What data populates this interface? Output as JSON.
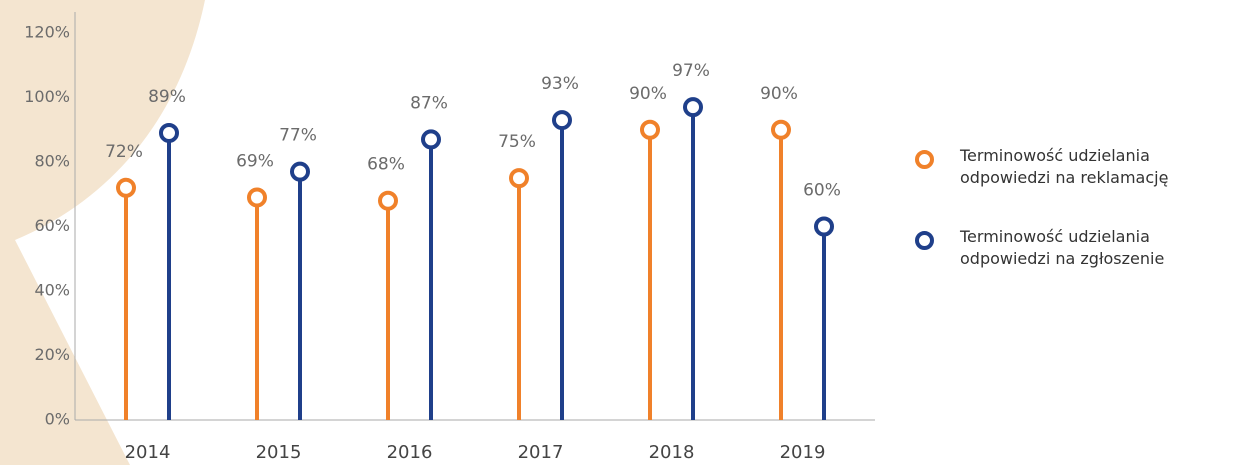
{
  "chart_data": {
    "type": "lollipop",
    "categories": [
      "2014",
      "2015",
      "2016",
      "2017",
      "2018",
      "2019"
    ],
    "series": [
      {
        "name": "Terminowość udzielania odpowiedzi na reklamację",
        "color": "#f0812a",
        "values": [
          72,
          69,
          68,
          75,
          90,
          90
        ],
        "value_labels": [
          "72%",
          "69%",
          "68%",
          "75%",
          "90%",
          "90%"
        ]
      },
      {
        "name": "Terminowość udzielania odpowiedzi na zgłoszenie",
        "color": "#1f3f8a",
        "values": [
          89,
          77,
          87,
          93,
          97,
          60
        ],
        "value_labels": [
          "89%",
          "77%",
          "87%",
          "93%",
          "97%",
          "60%"
        ]
      }
    ],
    "ylim": [
      0,
      120
    ],
    "yticks": [
      {
        "value": 0,
        "label": "0%"
      },
      {
        "value": 20,
        "label": "20%"
      },
      {
        "value": 40,
        "label": "40%"
      },
      {
        "value": 60,
        "label": "60%"
      },
      {
        "value": 80,
        "label": "80%"
      },
      {
        "value": 100,
        "label": "100%"
      },
      {
        "value": 120,
        "label": "120%"
      }
    ],
    "grid": false,
    "legend": "right"
  }
}
